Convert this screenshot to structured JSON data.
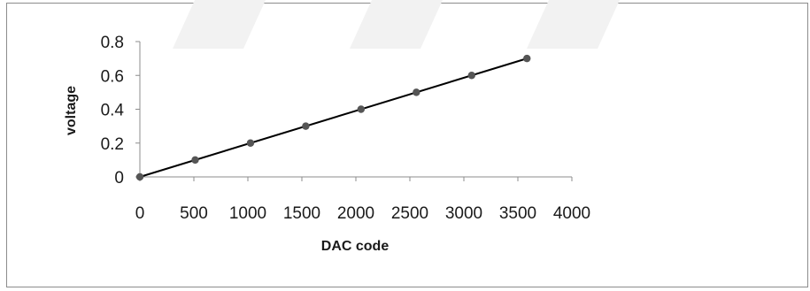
{
  "chart_data": {
    "type": "scatter",
    "title": "",
    "xlabel": "DAC code",
    "ylabel": "voltage",
    "xlim": [
      0,
      4000
    ],
    "ylim": [
      0,
      0.8
    ],
    "x_ticks": [
      "0",
      "500",
      "1000",
      "1500",
      "2000",
      "2500",
      "3000",
      "3500",
      "4000"
    ],
    "y_ticks": [
      "0",
      "0.2",
      "0.4",
      "0.6",
      "0.8"
    ],
    "series": [
      {
        "x": [
          0,
          512,
          1024,
          1536,
          2048,
          2560,
          3072,
          3584
        ],
        "y": [
          0,
          0.1,
          0.2,
          0.3,
          0.4,
          0.5,
          0.6,
          0.7
        ],
        "marker_color": "#555555",
        "line_color": "#000000"
      }
    ],
    "trendline": {
      "from": [
        0,
        0
      ],
      "to": [
        3584,
        0.7
      ]
    },
    "grid": false,
    "legend": "none"
  }
}
